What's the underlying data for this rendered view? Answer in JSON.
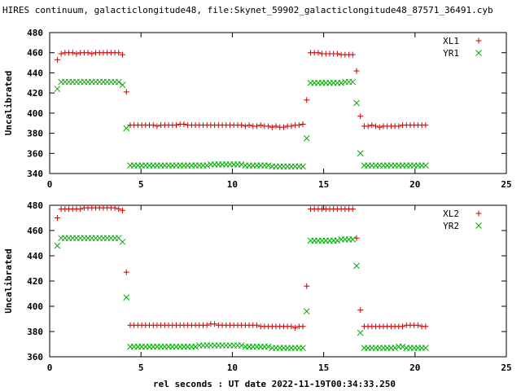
{
  "title": "HIRES continuum, galacticlongitude48, file:Skynet_59902_galacticlongitude48_87571_36491.cyb",
  "xlabel": "rel seconds : UT date 2022-11-19T00:34:33.250",
  "colors": {
    "xl": "#cc0000",
    "yr": "#00aa00"
  },
  "chart_data": [
    {
      "type": "scatter",
      "ylabel": "Uncalibrated",
      "xlim": [
        0,
        25
      ],
      "ylim": [
        340,
        480
      ],
      "xticks": [
        0,
        5,
        10,
        15,
        20,
        25
      ],
      "yticks": [
        340,
        360,
        380,
        400,
        420,
        440,
        460,
        480
      ],
      "legend_position": "top-right",
      "series": [
        {
          "name": "XL1",
          "marker": "plus",
          "x": [
            0.42,
            0.63,
            0.84,
            1.05,
            1.26,
            1.47,
            1.68,
            1.89,
            2.1,
            2.31,
            2.52,
            2.73,
            2.94,
            3.15,
            3.36,
            3.57,
            3.78,
            3.99,
            4.2,
            4.41,
            4.62,
            4.83,
            5.04,
            5.25,
            5.46,
            5.67,
            5.88,
            6.09,
            6.3,
            6.51,
            6.72,
            6.93,
            7.14,
            7.35,
            7.56,
            7.77,
            7.98,
            8.19,
            8.4,
            8.61,
            8.82,
            9.03,
            9.24,
            9.45,
            9.66,
            9.87,
            10.08,
            10.29,
            10.5,
            10.71,
            10.92,
            11.13,
            11.34,
            11.55,
            11.76,
            11.97,
            12.18,
            12.39,
            12.6,
            12.81,
            13.02,
            13.23,
            13.44,
            13.65,
            13.86,
            14.07,
            14.28,
            14.49,
            14.7,
            14.91,
            15.12,
            15.33,
            15.54,
            15.75,
            15.96,
            16.17,
            16.38,
            16.59,
            16.8,
            17.01,
            17.22,
            17.43,
            17.64,
            17.85,
            18.06,
            18.27,
            18.48,
            18.69,
            18.9,
            19.11,
            19.32,
            19.53,
            19.74,
            19.95,
            20.16,
            20.37,
            20.58
          ],
          "y": [
            453,
            459,
            460,
            460,
            460,
            459,
            460,
            460,
            460,
            459,
            460,
            460,
            460,
            460,
            460,
            460,
            460,
            458,
            421,
            388,
            388,
            388,
            388,
            388,
            388,
            388,
            387,
            388,
            388,
            388,
            388,
            388,
            389,
            389,
            388,
            388,
            388,
            388,
            388,
            388,
            388,
            388,
            388,
            388,
            388,
            388,
            388,
            388,
            388,
            387,
            388,
            387,
            387,
            388,
            387,
            387,
            386,
            387,
            386,
            386,
            387,
            387,
            388,
            388,
            389,
            413,
            460,
            460,
            460,
            459,
            459,
            459,
            459,
            459,
            458,
            458,
            458,
            458,
            442,
            397,
            387,
            387,
            388,
            387,
            386,
            387,
            387,
            387,
            387,
            387,
            388,
            388,
            388,
            388,
            388,
            388,
            388
          ]
        },
        {
          "name": "YR1",
          "marker": "cross",
          "x": [
            0.42,
            0.63,
            0.84,
            1.05,
            1.26,
            1.47,
            1.68,
            1.89,
            2.1,
            2.31,
            2.52,
            2.73,
            2.94,
            3.15,
            3.36,
            3.57,
            3.78,
            3.99,
            4.2,
            4.41,
            4.62,
            4.83,
            5.04,
            5.25,
            5.46,
            5.67,
            5.88,
            6.09,
            6.3,
            6.51,
            6.72,
            6.93,
            7.14,
            7.35,
            7.56,
            7.77,
            7.98,
            8.19,
            8.4,
            8.61,
            8.82,
            9.03,
            9.24,
            9.45,
            9.66,
            9.87,
            10.08,
            10.29,
            10.5,
            10.71,
            10.92,
            11.13,
            11.34,
            11.55,
            11.76,
            11.97,
            12.18,
            12.39,
            12.6,
            12.81,
            13.02,
            13.23,
            13.44,
            13.65,
            13.86,
            14.07,
            14.28,
            14.49,
            14.7,
            14.91,
            15.12,
            15.33,
            15.54,
            15.75,
            15.96,
            16.17,
            16.38,
            16.59,
            16.8,
            17.01,
            17.22,
            17.43,
            17.64,
            17.85,
            18.06,
            18.27,
            18.48,
            18.69,
            18.9,
            19.11,
            19.32,
            19.53,
            19.74,
            19.95,
            20.16,
            20.37,
            20.58
          ],
          "y": [
            424,
            431,
            431,
            431,
            431,
            431,
            431,
            431,
            431,
            431,
            431,
            431,
            431,
            431,
            431,
            431,
            431,
            428,
            385,
            348,
            348,
            348,
            348,
            348,
            348,
            348,
            348,
            348,
            348,
            348,
            348,
            348,
            348,
            348,
            348,
            348,
            348,
            348,
            348,
            348,
            349,
            349,
            349,
            349,
            349,
            349,
            349,
            349,
            349,
            348,
            348,
            348,
            348,
            348,
            348,
            348,
            347,
            347,
            347,
            347,
            347,
            347,
            347,
            347,
            347,
            375,
            430,
            430,
            430,
            430,
            430,
            430,
            430,
            430,
            430,
            431,
            431,
            431,
            410,
            360,
            348,
            348,
            348,
            348,
            348,
            348,
            348,
            348,
            348,
            348,
            348,
            348,
            348,
            348,
            348,
            348,
            348
          ]
        }
      ]
    },
    {
      "type": "scatter",
      "ylabel": "Uncalibrated",
      "xlim": [
        0,
        25
      ],
      "ylim": [
        360,
        480
      ],
      "xticks": [
        0,
        5,
        10,
        15,
        20,
        25
      ],
      "yticks": [
        360,
        380,
        400,
        420,
        440,
        460,
        480
      ],
      "legend_position": "top-right",
      "series": [
        {
          "name": "XL2",
          "marker": "plus",
          "x": [
            0.42,
            0.63,
            0.84,
            1.05,
            1.26,
            1.47,
            1.68,
            1.89,
            2.1,
            2.31,
            2.52,
            2.73,
            2.94,
            3.15,
            3.36,
            3.57,
            3.78,
            3.99,
            4.2,
            4.41,
            4.62,
            4.83,
            5.04,
            5.25,
            5.46,
            5.67,
            5.88,
            6.09,
            6.3,
            6.51,
            6.72,
            6.93,
            7.14,
            7.35,
            7.56,
            7.77,
            7.98,
            8.19,
            8.4,
            8.61,
            8.82,
            9.03,
            9.24,
            9.45,
            9.66,
            9.87,
            10.08,
            10.29,
            10.5,
            10.71,
            10.92,
            11.13,
            11.34,
            11.55,
            11.76,
            11.97,
            12.18,
            12.39,
            12.6,
            12.81,
            13.02,
            13.23,
            13.44,
            13.65,
            13.86,
            14.07,
            14.28,
            14.49,
            14.7,
            14.91,
            15.12,
            15.33,
            15.54,
            15.75,
            15.96,
            16.17,
            16.38,
            16.59,
            16.8,
            17.01,
            17.22,
            17.43,
            17.64,
            17.85,
            18.06,
            18.27,
            18.48,
            18.69,
            18.9,
            19.11,
            19.32,
            19.53,
            19.74,
            19.95,
            20.16,
            20.37,
            20.58
          ],
          "y": [
            470,
            477,
            477,
            477,
            477,
            477,
            477,
            478,
            478,
            478,
            478,
            478,
            478,
            478,
            478,
            478,
            477,
            476,
            427,
            385,
            385,
            385,
            385,
            385,
            385,
            385,
            385,
            385,
            385,
            385,
            385,
            385,
            385,
            385,
            385,
            385,
            385,
            385,
            385,
            385,
            386,
            386,
            385,
            385,
            385,
            385,
            385,
            385,
            385,
            385,
            385,
            385,
            385,
            384,
            384,
            384,
            384,
            384,
            384,
            384,
            384,
            384,
            383,
            384,
            384,
            416,
            477,
            477,
            477,
            477,
            477,
            477,
            477,
            477,
            477,
            477,
            477,
            477,
            454,
            397,
            384,
            384,
            384,
            384,
            384,
            384,
            384,
            384,
            384,
            384,
            384,
            385,
            385,
            385,
            385,
            384,
            384
          ]
        },
        {
          "name": "YR2",
          "marker": "cross",
          "x": [
            0.42,
            0.63,
            0.84,
            1.05,
            1.26,
            1.47,
            1.68,
            1.89,
            2.1,
            2.31,
            2.52,
            2.73,
            2.94,
            3.15,
            3.36,
            3.57,
            3.78,
            3.99,
            4.2,
            4.41,
            4.62,
            4.83,
            5.04,
            5.25,
            5.46,
            5.67,
            5.88,
            6.09,
            6.3,
            6.51,
            6.72,
            6.93,
            7.14,
            7.35,
            7.56,
            7.77,
            7.98,
            8.19,
            8.4,
            8.61,
            8.82,
            9.03,
            9.24,
            9.45,
            9.66,
            9.87,
            10.08,
            10.29,
            10.5,
            10.71,
            10.92,
            11.13,
            11.34,
            11.55,
            11.76,
            11.97,
            12.18,
            12.39,
            12.6,
            12.81,
            13.02,
            13.23,
            13.44,
            13.65,
            13.86,
            14.07,
            14.28,
            14.49,
            14.7,
            14.91,
            15.12,
            15.33,
            15.54,
            15.75,
            15.96,
            16.17,
            16.38,
            16.59,
            16.8,
            17.01,
            17.22,
            17.43,
            17.64,
            17.85,
            18.06,
            18.27,
            18.48,
            18.69,
            18.9,
            19.11,
            19.32,
            19.53,
            19.74,
            19.95,
            20.16,
            20.37,
            20.58
          ],
          "y": [
            448,
            454,
            454,
            454,
            454,
            454,
            454,
            454,
            454,
            454,
            454,
            454,
            454,
            454,
            454,
            454,
            454,
            451,
            407,
            368,
            368,
            368,
            368,
            368,
            368,
            368,
            368,
            368,
            368,
            368,
            368,
            368,
            368,
            368,
            368,
            368,
            368,
            369,
            369,
            369,
            369,
            369,
            369,
            369,
            369,
            369,
            369,
            369,
            369,
            368,
            368,
            368,
            368,
            368,
            368,
            368,
            367,
            367,
            367,
            367,
            367,
            367,
            367,
            367,
            367,
            396,
            452,
            452,
            452,
            452,
            452,
            452,
            452,
            452,
            453,
            453,
            453,
            453,
            432,
            379,
            367,
            367,
            367,
            367,
            367,
            367,
            367,
            367,
            367,
            368,
            368,
            367,
            367,
            367,
            367,
            367,
            367
          ]
        }
      ]
    }
  ]
}
